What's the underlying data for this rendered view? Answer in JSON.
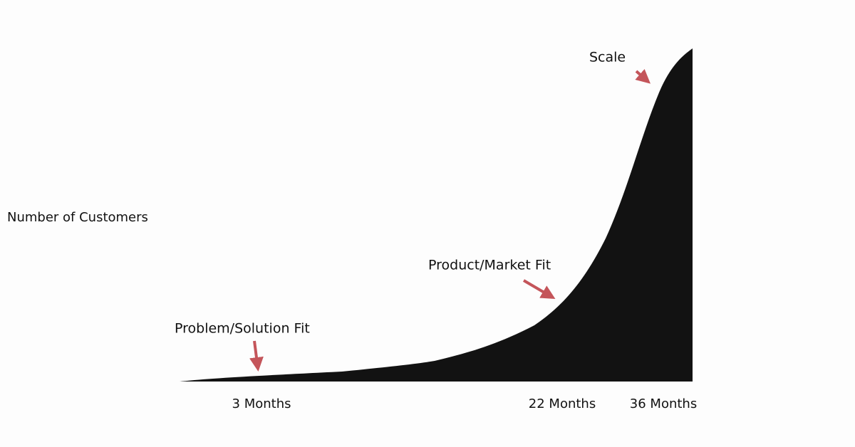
{
  "y_axis_label": "Number of Customers",
  "x_labels": [
    "3 Months",
    "22 Months",
    "36 Months"
  ],
  "annotations": [
    "Problem/Solution Fit",
    "Product/Market Fit",
    "Scale"
  ]
}
